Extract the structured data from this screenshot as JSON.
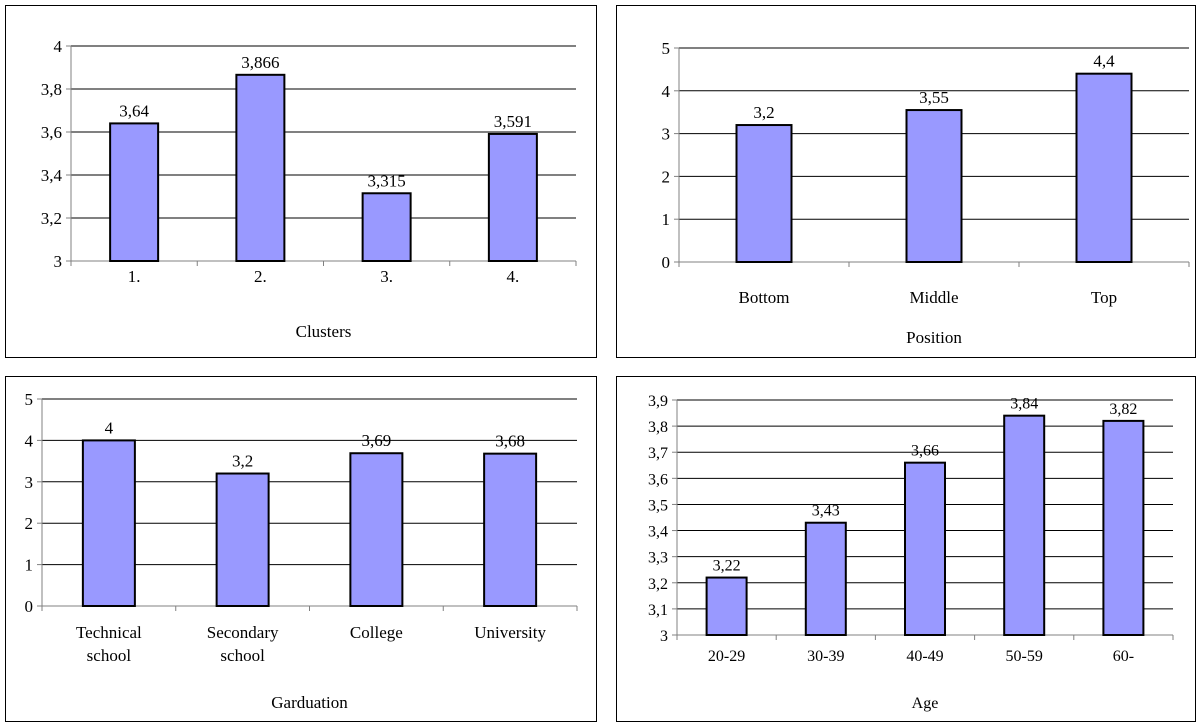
{
  "chart_data": [
    {
      "type": "bar",
      "categories": [
        "1.",
        "2.",
        "3.",
        "4."
      ],
      "values": [
        3.64,
        3.866,
        3.315,
        3.591
      ],
      "data_labels": [
        "3,64",
        "3,866",
        "3,315",
        "3,591"
      ],
      "xlabel": "Clusters",
      "ylabel": "",
      "ylim": [
        3,
        4
      ],
      "yticks": [
        3,
        3.2,
        3.4,
        3.6,
        3.8,
        4
      ],
      "ytick_labels": [
        "3",
        "3,2",
        "3,4",
        "3,6",
        "3,8",
        "4"
      ],
      "grid": true,
      "legend": "none"
    },
    {
      "type": "bar",
      "categories": [
        "Bottom",
        "Middle",
        "Top"
      ],
      "values": [
        3.2,
        3.55,
        4.4
      ],
      "data_labels": [
        "3,2",
        "3,55",
        "4,4"
      ],
      "xlabel": "Position",
      "ylabel": "",
      "ylim": [
        0,
        5
      ],
      "yticks": [
        0,
        1,
        2,
        3,
        4,
        5
      ],
      "ytick_labels": [
        "0",
        "1",
        "2",
        "3",
        "4",
        "5"
      ],
      "grid": true,
      "legend": "none"
    },
    {
      "type": "bar",
      "categories": [
        [
          "Technical",
          "school"
        ],
        [
          "Secondary",
          "school"
        ],
        [
          "College"
        ],
        [
          "University"
        ]
      ],
      "values": [
        4,
        3.2,
        3.69,
        3.68
      ],
      "data_labels": [
        "4",
        "3,2",
        "3,69",
        "3,68"
      ],
      "xlabel": "Garduation",
      "ylabel": "",
      "ylim": [
        0,
        5
      ],
      "yticks": [
        0,
        1,
        2,
        3,
        4,
        5
      ],
      "ytick_labels": [
        "0",
        "1",
        "2",
        "3",
        "4",
        "5"
      ],
      "grid": true,
      "legend": "none"
    },
    {
      "type": "bar",
      "categories": [
        "20-29",
        "30-39",
        "40-49",
        "50-59",
        "60-"
      ],
      "values": [
        3.22,
        3.43,
        3.66,
        3.84,
        3.82
      ],
      "data_labels": [
        "3,22",
        "3,43",
        "3,66",
        "3,84",
        "3,82"
      ],
      "xlabel": "Age",
      "ylabel": "",
      "ylim": [
        3,
        3.9
      ],
      "yticks": [
        3,
        3.1,
        3.2,
        3.3,
        3.4,
        3.5,
        3.6,
        3.7,
        3.8,
        3.9
      ],
      "ytick_labels": [
        "3",
        "3,1",
        "3,2",
        "3,3",
        "3,4",
        "3,5",
        "3,6",
        "3,7",
        "3,8",
        "3,9"
      ],
      "grid": true,
      "legend": "none"
    }
  ],
  "colors": {
    "bar_fill": "#9999ff",
    "bar_stroke": "#000000",
    "grid": "#000000",
    "axis": "#808080",
    "background": "#ffffff"
  }
}
